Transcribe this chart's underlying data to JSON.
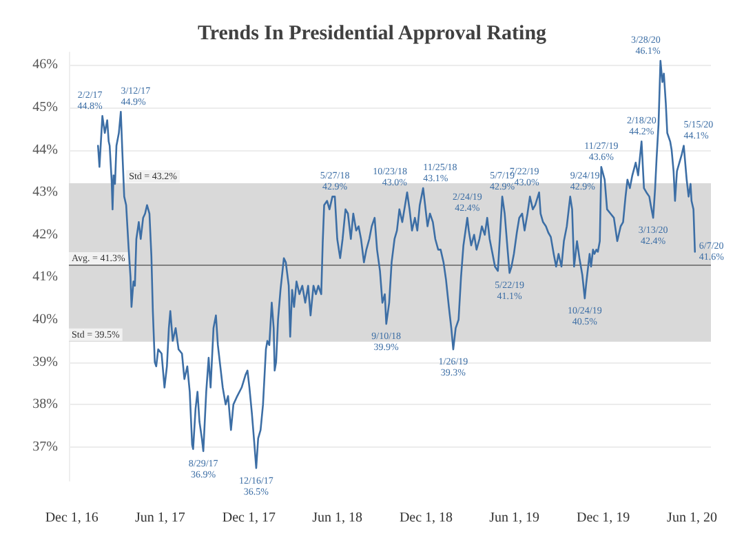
{
  "chart_data": {
    "type": "line",
    "title": "Trends In Presidential Approval Rating",
    "xlim": [
      "2016-11-25",
      "2020-07-10"
    ],
    "xticks": [
      {
        "value": "2016-12-01",
        "label": "Dec 1, 16"
      },
      {
        "value": "2017-06-01",
        "label": "Jun 1, 17"
      },
      {
        "value": "2017-12-01",
        "label": "Dec 1, 17"
      },
      {
        "value": "2018-06-01",
        "label": "Jun 1, 18"
      },
      {
        "value": "2018-12-01",
        "label": "Dec 1, 18"
      },
      {
        "value": "2019-06-01",
        "label": "Jun 1, 19"
      },
      {
        "value": "2019-12-01",
        "label": "Dec 1, 19"
      },
      {
        "value": "2020-06-01",
        "label": "Jun 1, 20"
      }
    ],
    "ylim": [
      36.2,
      46.3
    ],
    "yticks": [
      {
        "value": 37,
        "label": "37%"
      },
      {
        "value": 38,
        "label": "38%"
      },
      {
        "value": 39,
        "label": "39%"
      },
      {
        "value": 40,
        "label": "40%"
      },
      {
        "value": 41,
        "label": "41%"
      },
      {
        "value": 42,
        "label": "42%"
      },
      {
        "value": 43,
        "label": "43%"
      },
      {
        "value": 44,
        "label": "44%"
      },
      {
        "value": 45,
        "label": "45%"
      },
      {
        "value": 46,
        "label": "46%"
      }
    ],
    "grid": "y",
    "line_style": "solid",
    "series": [
      {
        "color": "#3c6ea5",
        "x": [
          "2017-01-24",
          "2017-01-27",
          "2017-02-02",
          "2017-02-07",
          "2017-02-12",
          "2017-02-15",
          "2017-02-17",
          "2017-02-21",
          "2017-02-23",
          "2017-02-25",
          "2017-02-28",
          "2017-03-03",
          "2017-03-08",
          "2017-03-12",
          "2017-03-15",
          "2017-03-19",
          "2017-03-23",
          "2017-03-28",
          "2017-04-01",
          "2017-04-03",
          "2017-04-07",
          "2017-04-10",
          "2017-04-13",
          "2017-04-18",
          "2017-04-22",
          "2017-04-27",
          "2017-05-01",
          "2017-05-05",
          "2017-05-10",
          "2017-05-14",
          "2017-05-17",
          "2017-05-21",
          "2017-05-24",
          "2017-05-28",
          "2017-06-04",
          "2017-06-10",
          "2017-06-15",
          "2017-06-19",
          "2017-06-22",
          "2017-06-27",
          "2017-07-03",
          "2017-07-09",
          "2017-07-16",
          "2017-07-21",
          "2017-07-27",
          "2017-08-01",
          "2017-08-06",
          "2017-08-08",
          "2017-08-13",
          "2017-08-17",
          "2017-08-21",
          "2017-08-26",
          "2017-08-29",
          "2017-09-04",
          "2017-09-09",
          "2017-09-13",
          "2017-09-19",
          "2017-09-24",
          "2017-09-28",
          "2017-10-03",
          "2017-10-08",
          "2017-10-14",
          "2017-10-19",
          "2017-10-25",
          "2017-10-30",
          "2017-11-07",
          "2017-11-16",
          "2017-11-24",
          "2017-11-28",
          "2017-12-02",
          "2017-12-07",
          "2017-12-12",
          "2017-12-16",
          "2017-12-20",
          "2017-12-25",
          "2017-12-30",
          "2018-01-05",
          "2018-01-08",
          "2018-01-12",
          "2018-01-17",
          "2018-01-21",
          "2018-01-23",
          "2018-01-26",
          "2018-01-30",
          "2018-02-04",
          "2018-02-11",
          "2018-02-15",
          "2018-02-21",
          "2018-02-24",
          "2018-02-28",
          "2018-03-04",
          "2018-03-09",
          "2018-03-15",
          "2018-03-21",
          "2018-03-27",
          "2018-04-02",
          "2018-04-07",
          "2018-04-13",
          "2018-04-18",
          "2018-04-23",
          "2018-04-29",
          "2018-05-02",
          "2018-05-05",
          "2018-05-11",
          "2018-05-16",
          "2018-05-22",
          "2018-05-27",
          "2018-06-01",
          "2018-06-07",
          "2018-06-12",
          "2018-06-18",
          "2018-06-23",
          "2018-06-29",
          "2018-07-04",
          "2018-07-10",
          "2018-07-15",
          "2018-07-20",
          "2018-07-26",
          "2018-07-31",
          "2018-08-06",
          "2018-08-11",
          "2018-08-17",
          "2018-08-22",
          "2018-08-28",
          "2018-09-02",
          "2018-09-07",
          "2018-09-10",
          "2018-09-16",
          "2018-09-21",
          "2018-09-27",
          "2018-10-02",
          "2018-10-07",
          "2018-10-13",
          "2018-10-23",
          "2018-10-28",
          "2018-11-02",
          "2018-11-08",
          "2018-11-13",
          "2018-11-18",
          "2018-11-25",
          "2018-11-29",
          "2018-12-04",
          "2018-12-09",
          "2018-12-15",
          "2018-12-20",
          "2018-12-26",
          "2018-12-31",
          "2019-01-06",
          "2019-01-11",
          "2019-01-17",
          "2019-01-22",
          "2019-01-26",
          "2019-01-31",
          "2019-02-06",
          "2019-02-11",
          "2019-02-16",
          "2019-02-24",
          "2019-02-27",
          "2019-03-04",
          "2019-03-10",
          "2019-03-15",
          "2019-03-21",
          "2019-03-26",
          "2019-04-01",
          "2019-04-06",
          "2019-04-11",
          "2019-04-17",
          "2019-04-22",
          "2019-04-28",
          "2019-05-07",
          "2019-05-12",
          "2019-05-18",
          "2019-05-22",
          "2019-05-26",
          "2019-05-31",
          "2019-06-06",
          "2019-06-11",
          "2019-06-17",
          "2019-06-22",
          "2019-06-28",
          "2019-07-03",
          "2019-07-09",
          "2019-07-14",
          "2019-07-22",
          "2019-07-25",
          "2019-07-30",
          "2019-08-05",
          "2019-08-10",
          "2019-08-15",
          "2019-08-21",
          "2019-08-26",
          "2019-08-31",
          "2019-09-06",
          "2019-09-11",
          "2019-09-17",
          "2019-09-24",
          "2019-09-28",
          "2019-10-02",
          "2019-10-08",
          "2019-10-13",
          "2019-10-19",
          "2019-10-24",
          "2019-10-27",
          "2019-10-30",
          "2019-11-03",
          "2019-11-06",
          "2019-11-10",
          "2019-11-13",
          "2019-11-17",
          "2019-11-20",
          "2019-11-24",
          "2019-11-27",
          "2019-12-04",
          "2019-12-09",
          "2019-12-16",
          "2019-12-23",
          "2019-12-30",
          "2020-01-06",
          "2020-01-11",
          "2020-01-16",
          "2020-01-20",
          "2020-01-25",
          "2020-01-30",
          "2020-02-06",
          "2020-02-11",
          "2020-02-18",
          "2020-02-23",
          "2020-02-28",
          "2020-03-05",
          "2020-03-08",
          "2020-03-13",
          "2020-03-17",
          "2020-03-20",
          "2020-03-24",
          "2020-03-28",
          "2020-04-01",
          "2020-04-04",
          "2020-04-08",
          "2020-04-11",
          "2020-04-17",
          "2020-04-20",
          "2020-04-24",
          "2020-04-27",
          "2020-05-01",
          "2020-05-06",
          "2020-05-11",
          "2020-05-15",
          "2020-05-21",
          "2020-05-25",
          "2020-05-29",
          "2020-05-31",
          "2020-06-04",
          "2020-06-07"
        ],
        "values": [
          44.1,
          43.6,
          44.8,
          44.4,
          44.7,
          44.2,
          44.1,
          43.3,
          42.6,
          43.4,
          43.2,
          44.1,
          44.4,
          44.9,
          44.0,
          42.9,
          42.7,
          41.7,
          41.0,
          40.3,
          40.9,
          40.8,
          41.9,
          42.3,
          41.9,
          42.4,
          42.5,
          42.7,
          42.5,
          41.5,
          40.2,
          39.0,
          38.9,
          39.3,
          39.2,
          38.4,
          38.9,
          39.8,
          40.2,
          39.5,
          39.8,
          39.3,
          39.2,
          38.6,
          38.9,
          38.3,
          37.05,
          36.95,
          37.9,
          38.3,
          37.6,
          37.2,
          36.9,
          38.3,
          39.1,
          38.4,
          39.8,
          40.1,
          39.4,
          38.9,
          38.4,
          38.0,
          38.2,
          37.4,
          38.0,
          38.2,
          38.4,
          38.7,
          38.8,
          38.4,
          37.8,
          37.1,
          36.5,
          37.2,
          37.4,
          38.0,
          39.3,
          39.5,
          39.4,
          40.4,
          39.8,
          38.8,
          39.0,
          40.0,
          40.7,
          41.45,
          41.35,
          40.8,
          39.6,
          40.7,
          40.3,
          40.9,
          40.6,
          40.8,
          40.4,
          40.8,
          40.1,
          40.8,
          40.6,
          40.8,
          40.6,
          41.8,
          42.7,
          42.8,
          42.6,
          42.9,
          42.9,
          41.9,
          41.45,
          41.9,
          42.6,
          42.5,
          41.9,
          42.5,
          42.1,
          42.2,
          41.9,
          41.35,
          41.65,
          41.9,
          42.2,
          42.4,
          41.65,
          41.15,
          40.4,
          40.6,
          39.9,
          40.4,
          41.35,
          41.9,
          42.1,
          42.6,
          42.3,
          43.0,
          42.6,
          42.1,
          42.4,
          42.1,
          42.7,
          43.1,
          42.7,
          42.2,
          42.5,
          42.3,
          41.9,
          41.65,
          41.65,
          41.35,
          40.95,
          40.3,
          39.8,
          39.3,
          39.8,
          40.0,
          41.0,
          41.75,
          42.4,
          42.1,
          41.75,
          42.0,
          41.65,
          41.9,
          42.2,
          42.0,
          42.4,
          41.9,
          41.55,
          41.25,
          41.15,
          42.9,
          42.5,
          41.65,
          41.1,
          41.25,
          41.55,
          42.05,
          42.4,
          42.5,
          42.1,
          42.5,
          42.9,
          42.6,
          42.7,
          43.0,
          42.5,
          42.3,
          42.2,
          42.05,
          41.95,
          41.55,
          41.25,
          41.55,
          41.25,
          41.85,
          42.2,
          42.9,
          42.6,
          41.25,
          41.85,
          41.45,
          41.05,
          40.5,
          40.85,
          41.15,
          41.55,
          41.25,
          41.65,
          41.55,
          41.65,
          41.6,
          41.85,
          43.6,
          43.3,
          42.6,
          42.5,
          42.4,
          41.85,
          42.2,
          42.3,
          42.9,
          43.3,
          43.1,
          43.4,
          43.7,
          43.4,
          44.2,
          43.1,
          43.0,
          42.9,
          42.7,
          42.4,
          43.1,
          43.8,
          44.6,
          46.1,
          45.6,
          45.8,
          45.1,
          44.4,
          44.2,
          44.0,
          43.5,
          42.8,
          43.5,
          43.7,
          43.9,
          44.1,
          43.3,
          42.9,
          43.2,
          42.8,
          42.6,
          41.6
        ]
      }
    ],
    "bands": [
      {
        "axis": "y",
        "from": 39.5,
        "to": 43.2,
        "color": "#d9d9d9"
      }
    ],
    "ref_lines": [
      {
        "axis": "y",
        "value": 43.2,
        "label": "Std = 43.2%",
        "color": "#d9d9d9"
      },
      {
        "axis": "y",
        "value": 41.3,
        "label": "Avg. = 41.3%",
        "color": "#808080"
      },
      {
        "axis": "y",
        "value": 39.5,
        "label": "Std = 39.5%",
        "color": "#d9d9d9"
      }
    ],
    "annotations": [
      {
        "text": "2/2/17\n44.8%",
        "x": "2017-02-02",
        "y": 44.8
      },
      {
        "text": "3/12/17\n44.9%",
        "x": "2017-03-12",
        "y": 44.9
      },
      {
        "text": "8/29/17\n36.9%",
        "x": "2017-08-29",
        "y": 36.9
      },
      {
        "text": "12/16/17\n36.5%",
        "x": "2017-12-16",
        "y": 36.5
      },
      {
        "text": "5/27/18\n42.9%",
        "x": "2018-05-27",
        "y": 42.9
      },
      {
        "text": "9/10/18\n39.9%",
        "x": "2018-09-10",
        "y": 39.9
      },
      {
        "text": "10/23/18\n43.0%",
        "x": "2018-10-23",
        "y": 43.0
      },
      {
        "text": "11/25/18\n43.1%",
        "x": "2018-11-25",
        "y": 43.1
      },
      {
        "text": "1/26/19\n39.3%",
        "x": "2019-01-26",
        "y": 39.3
      },
      {
        "text": "2/24/19\n42.4%",
        "x": "2019-02-24",
        "y": 42.4
      },
      {
        "text": "5/7/19\n42.9%",
        "x": "2019-05-07",
        "y": 42.9
      },
      {
        "text": "5/22/19\n41.1%",
        "x": "2019-05-22",
        "y": 41.1
      },
      {
        "text": "7/22/19\n43.0%",
        "x": "2019-07-22",
        "y": 43.0
      },
      {
        "text": "9/24/19\n42.9%",
        "x": "2019-09-24",
        "y": 42.9
      },
      {
        "text": "10/24/19\n40.5%",
        "x": "2019-10-24",
        "y": 40.5
      },
      {
        "text": "11/27/19\n43.6%",
        "x": "2019-11-27",
        "y": 43.6
      },
      {
        "text": "2/18/20\n44.2%",
        "x": "2020-02-18",
        "y": 44.2
      },
      {
        "text": "3/13/20\n42.4%",
        "x": "2020-03-13",
        "y": 42.4
      },
      {
        "text": "3/28/20\n46.1%",
        "x": "2020-03-28",
        "y": 46.1
      },
      {
        "text": "5/15/20\n44.1%",
        "x": "2020-05-15",
        "y": 44.1
      },
      {
        "text": "6/7/20\n41.6%",
        "x": "2020-06-07",
        "y": 41.6
      }
    ]
  }
}
